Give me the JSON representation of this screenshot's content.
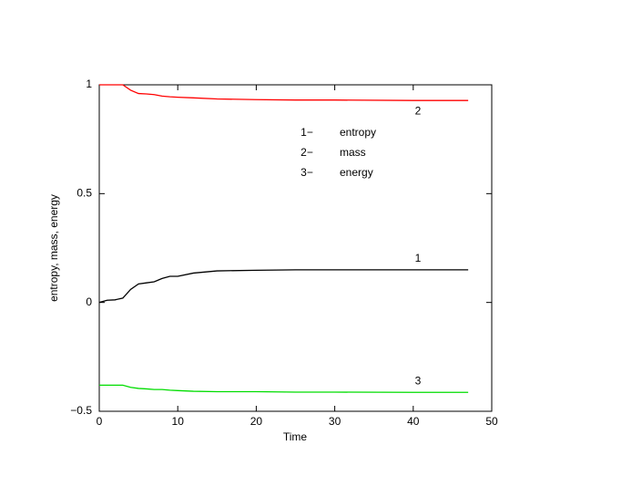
{
  "chart_data": {
    "type": "line",
    "xlabel": "Time",
    "ylabel": "entropy, mass, energy",
    "x": [
      0,
      1,
      2,
      3,
      4,
      5,
      6,
      7,
      8,
      9,
      10,
      12,
      15,
      20,
      25,
      30,
      40,
      47
    ],
    "series": [
      {
        "name": "entropy",
        "key": "1−",
        "label": "1",
        "color": "#000000",
        "values": [
          0,
          0.01,
          0.012,
          0.02,
          0.06,
          0.085,
          0.09,
          0.095,
          0.11,
          0.12,
          0.12,
          0.135,
          0.145,
          0.148,
          0.15,
          0.15,
          0.15,
          0.15
        ]
      },
      {
        "name": "mass",
        "key": "2−",
        "label": "2",
        "color": "#ff0000",
        "values": [
          1,
          1,
          1,
          1,
          0.975,
          0.96,
          0.958,
          0.955,
          0.948,
          0.945,
          0.943,
          0.94,
          0.935,
          0.932,
          0.93,
          0.93,
          0.928,
          0.928
        ]
      },
      {
        "name": "energy",
        "key": "3−",
        "label": "3",
        "color": "#00dd00",
        "values": [
          -0.38,
          -0.38,
          -0.38,
          -0.38,
          -0.39,
          -0.395,
          -0.397,
          -0.4,
          -0.4,
          -0.403,
          -0.405,
          -0.408,
          -0.41,
          -0.41,
          -0.412,
          -0.412,
          -0.413,
          -0.413
        ]
      }
    ],
    "xlim": [
      0,
      50
    ],
    "xticks": [
      0,
      10,
      20,
      30,
      40,
      50
    ],
    "ylim": [
      -0.5,
      1
    ],
    "yticks": [
      {
        "value": -0.5,
        "label": "−0.5"
      },
      0,
      0.5,
      1
    ],
    "grid": false
  }
}
